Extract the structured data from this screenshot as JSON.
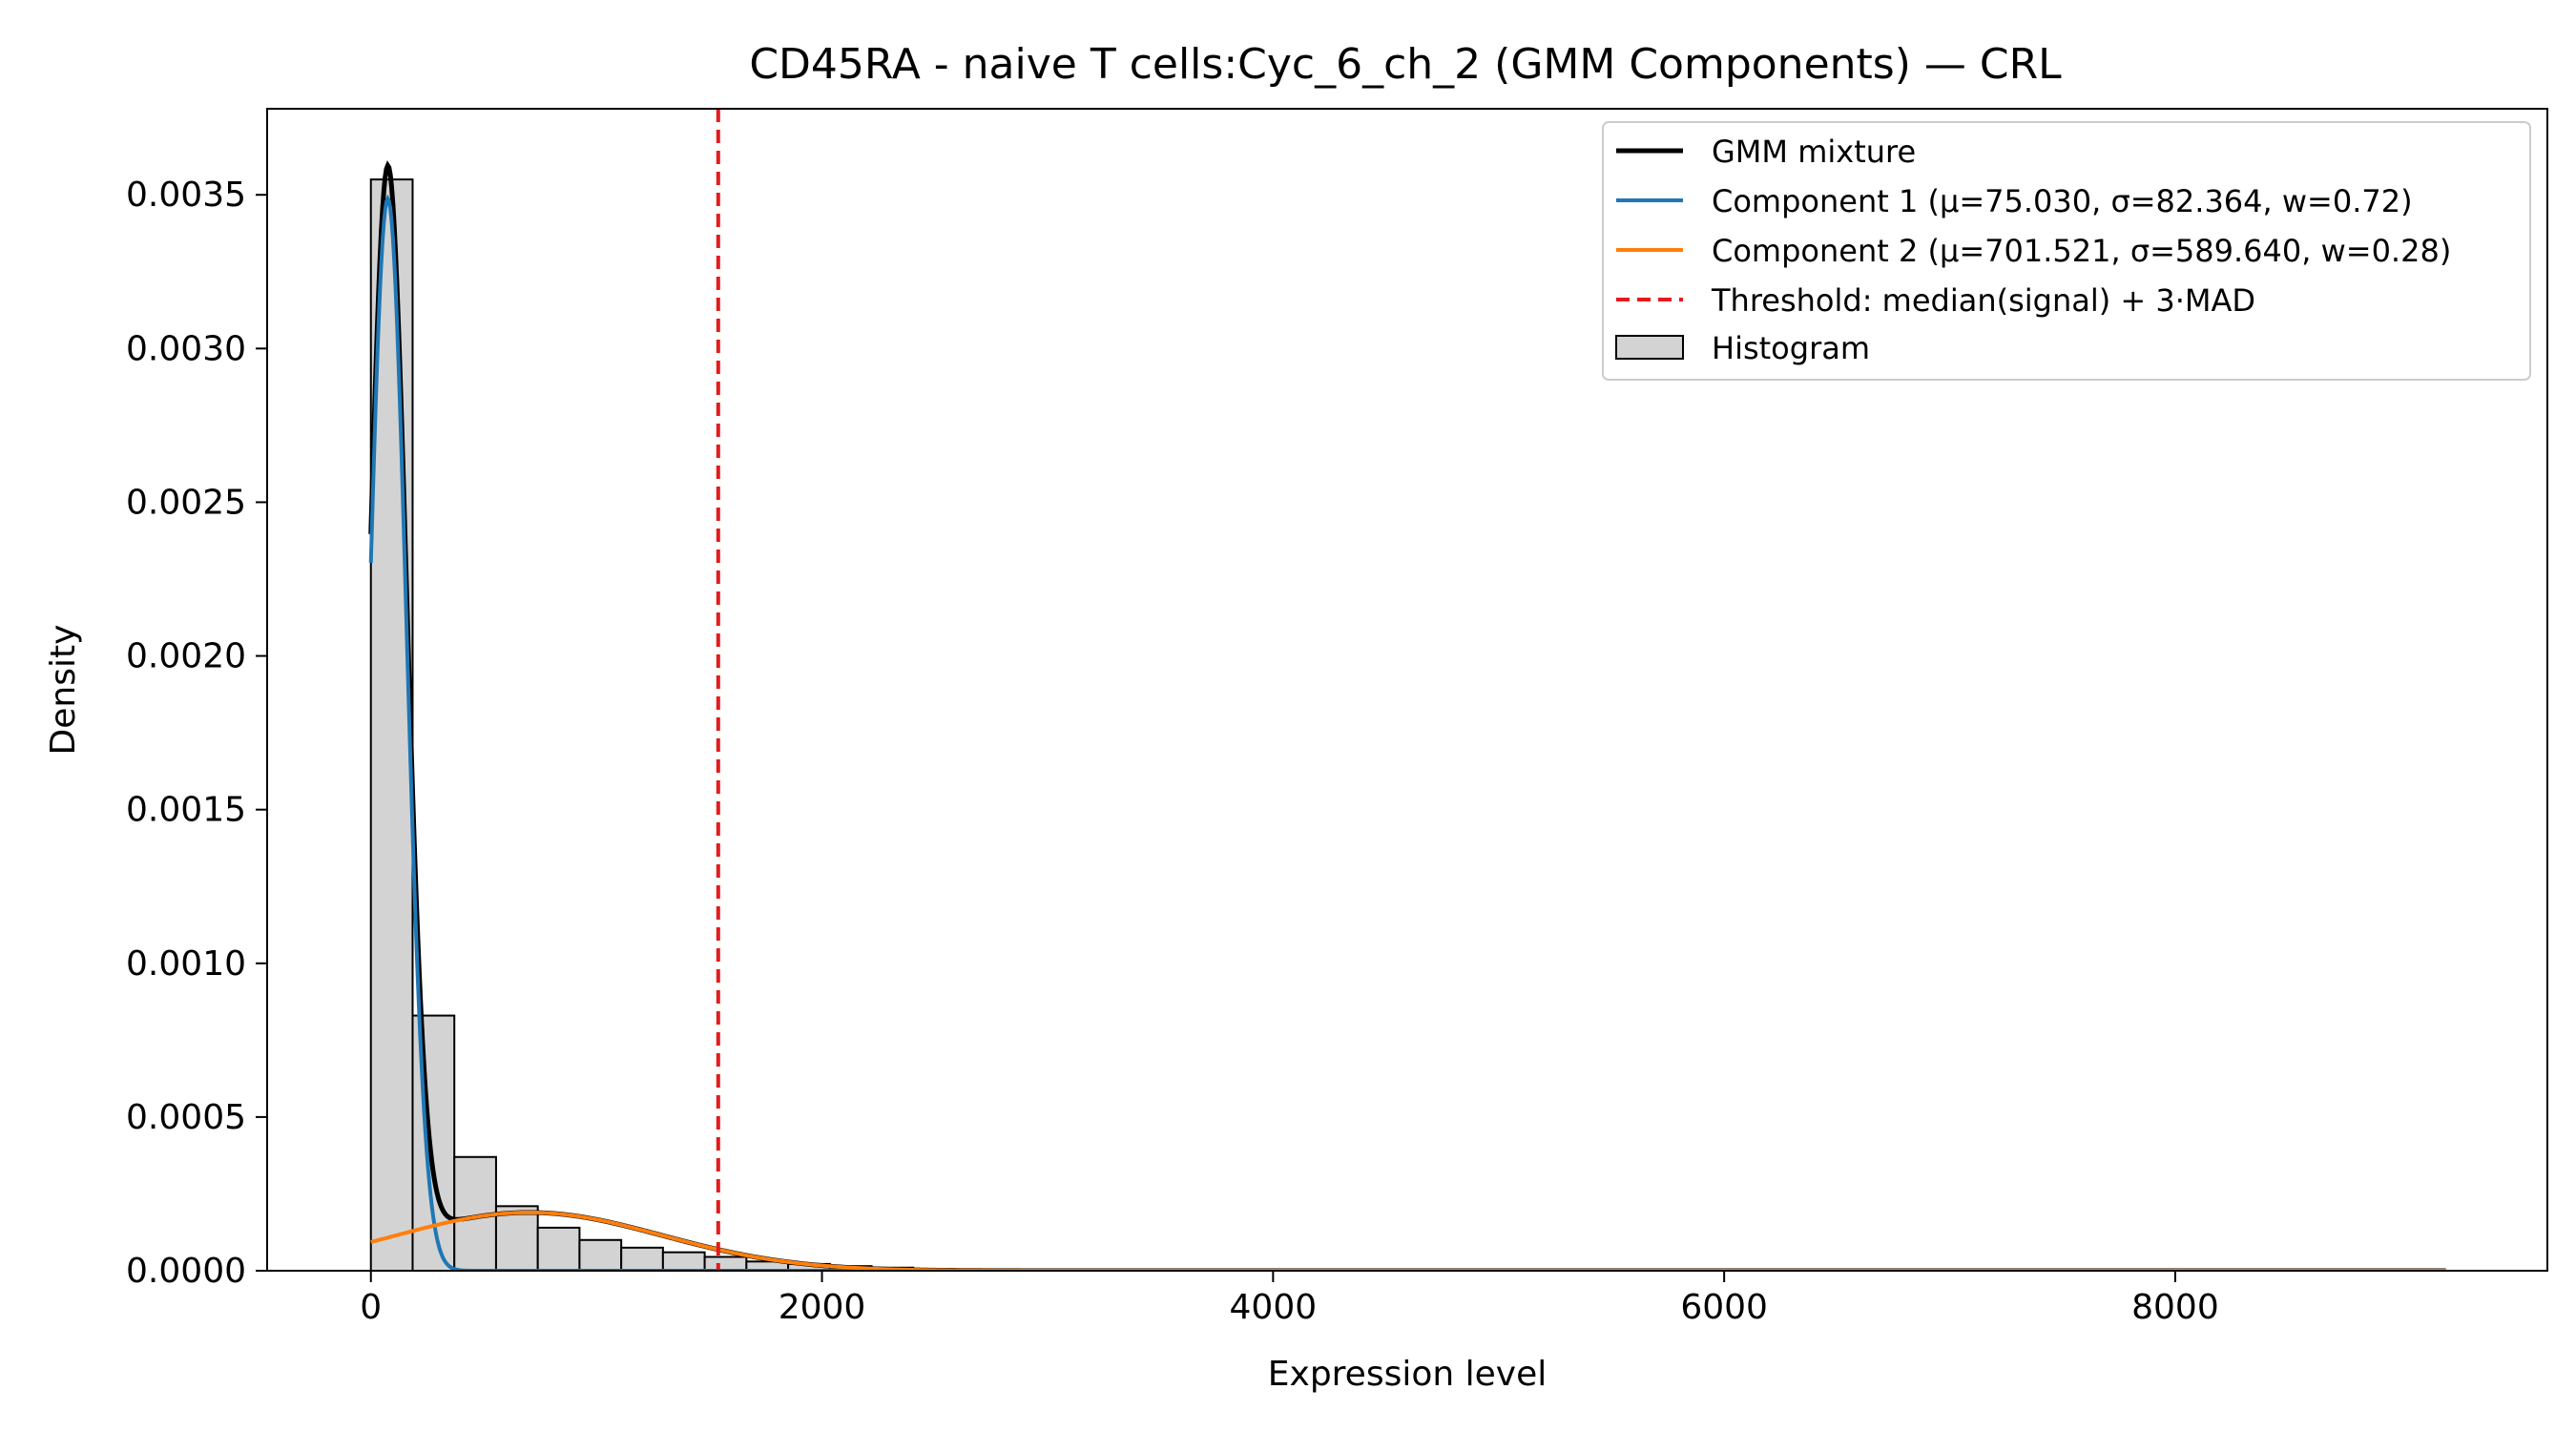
{
  "chart_data": {
    "type": "histogram",
    "title": "CD45RA - naive T cells:Cyc_6_ch_2 (GMM Components) — CRL",
    "xlabel": "Expression level",
    "ylabel": "Density",
    "xlim": [
      -460,
      9650
    ],
    "ylim": [
      0,
      0.00378
    ],
    "xticks": [
      0,
      2000,
      4000,
      6000,
      8000
    ],
    "xtick_labels": [
      "0",
      "2000",
      "4000",
      "6000",
      "8000"
    ],
    "yticks": [
      0,
      0.0005,
      0.001,
      0.0015,
      0.002,
      0.0025,
      0.003,
      0.0035
    ],
    "ytick_labels": [
      "0.0000",
      "0.0005",
      "0.0010",
      "0.0015",
      "0.0020",
      "0.0025",
      "0.0030",
      "0.0035"
    ],
    "grid": false,
    "legend_position": "top-right",
    "histogram": {
      "name": "Histogram",
      "bin_width": 185,
      "bin_edges_start": 0,
      "densities": [
        0.00355,
        0.00083,
        0.00037,
        0.00021,
        0.00014,
        0.0001,
        7.5e-05,
        6e-05,
        4.5e-05,
        3e-05,
        2.2e-05,
        1.5e-05,
        1e-05,
        6e-06,
        4e-06,
        2e-06,
        1e-06
      ],
      "fill": "#d3d3d3",
      "edge": "#000000"
    },
    "components": [
      {
        "name": "Component 1 (μ=75.030, σ=82.364, w=0.72)",
        "mu": 75.03,
        "sigma": 82.364,
        "weight": 0.72,
        "color": "#1f77b4"
      },
      {
        "name": "Component 2 (μ=701.521, σ=589.640, w=0.28)",
        "mu": 701.521,
        "sigma": 589.64,
        "weight": 0.28,
        "color": "#ff7f0e"
      }
    ],
    "mixture": {
      "name": "GMM mixture",
      "color": "#000000"
    },
    "curve_range": [
      0,
      9200
    ],
    "threshold": {
      "name": "Threshold: median(signal) + 3·MAD",
      "x": 1540,
      "color": "#e41a1c"
    }
  }
}
